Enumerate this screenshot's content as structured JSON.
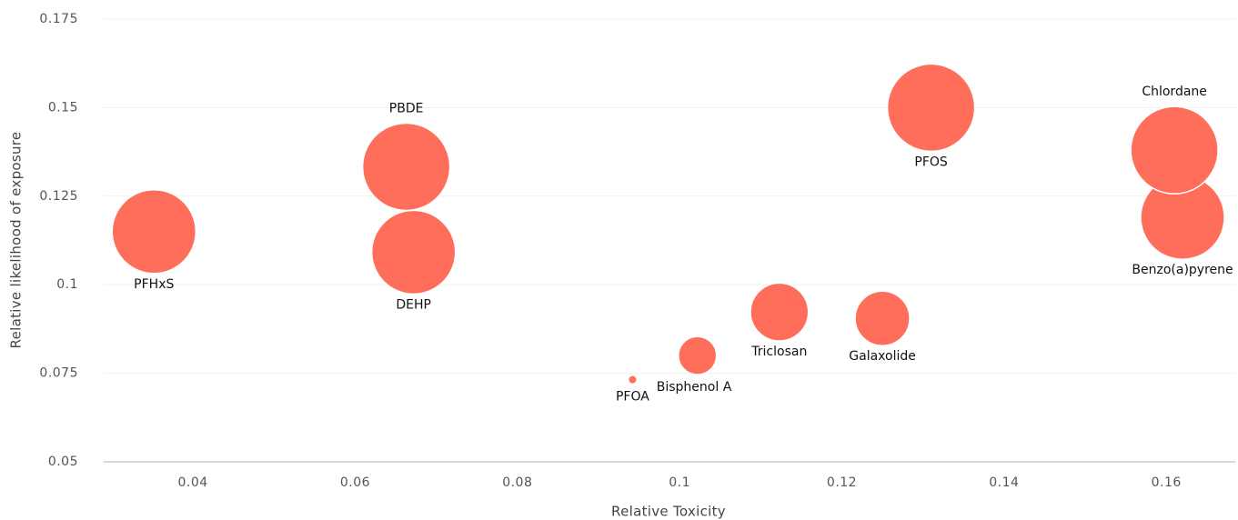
{
  "chart_data": {
    "type": "scatter",
    "x_label": "Relative Toxicity",
    "y_label": "Relative likelihood of exposure",
    "color": "#ff6e5a",
    "grid": true,
    "xlim": [
      0.029,
      0.1685
    ],
    "ylim": [
      0.05,
      0.175
    ],
    "xticks": [
      0.04,
      0.06,
      0.08,
      0.1,
      0.12,
      0.14,
      0.16
    ],
    "yticks": [
      0.05,
      0.075,
      0.1,
      0.125,
      0.15,
      0.175
    ],
    "labels": [
      "PFHxS",
      "PBDE",
      "DEHP",
      "PFOA",
      "Bisphenol A",
      "Triclosan",
      "Galaxolide",
      "PFOS",
      "Benzo(a)pyrene",
      "Chlordane"
    ],
    "x": [
      0.0352,
      0.0663,
      0.0672,
      0.0942,
      0.1022,
      0.1123,
      0.125,
      0.131,
      0.162,
      0.161
    ],
    "values": [
      0.115,
      0.1333,
      0.1092,
      0.0732,
      0.08,
      0.0923,
      0.0905,
      0.15,
      0.119,
      0.138
    ],
    "sizes": [
      92,
      100,
      92,
      1,
      19,
      44,
      39,
      100,
      92,
      100
    ]
  }
}
